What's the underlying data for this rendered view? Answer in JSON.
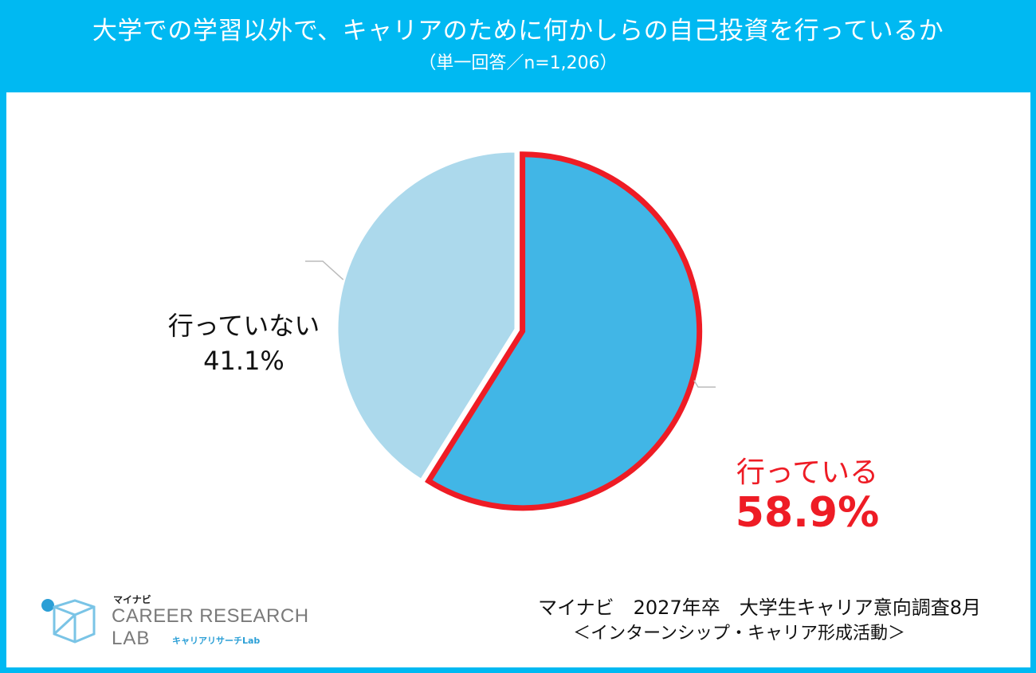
{
  "header": {
    "title": "大学での学習以外で、キャリアのために何かしらの自己投資を行っているか",
    "subtitle": "（単一回答／n=1,206）"
  },
  "chart_data": {
    "type": "pie",
    "title": "大学での学習以外で、キャリアのために何かしらの自己投資を行っているか",
    "subtitle": "（単一回答／n=1,206）",
    "slices": [
      {
        "label": "行っている",
        "value": 58.9,
        "value_label": "58.9%",
        "color": "#41b6e6",
        "highlight_color": "#ee1c25"
      },
      {
        "label": "行っていない",
        "value": 41.1,
        "value_label": "41.1%",
        "color": "#acd9ec"
      }
    ],
    "start_angle": "12 o'clock",
    "direction": "clockwise",
    "leader_line_color": "#bbbbbb"
  },
  "logo": {
    "brand": "マイナビ",
    "line1": "CAREER RESEARCH",
    "line2": "LAB",
    "sub": "キャリアリサーチLab",
    "colors": {
      "text": "#7a7a7a",
      "accent": "#2b9fd6"
    }
  },
  "source": {
    "line1": "マイナビ　2027年卒　大学生キャリア意向調査8月",
    "line2": "＜インターンシップ・キャリア形成活動＞"
  },
  "colors": {
    "frame": "#00b9f2",
    "background": "#ffffff",
    "highlight": "#ee1c25"
  }
}
